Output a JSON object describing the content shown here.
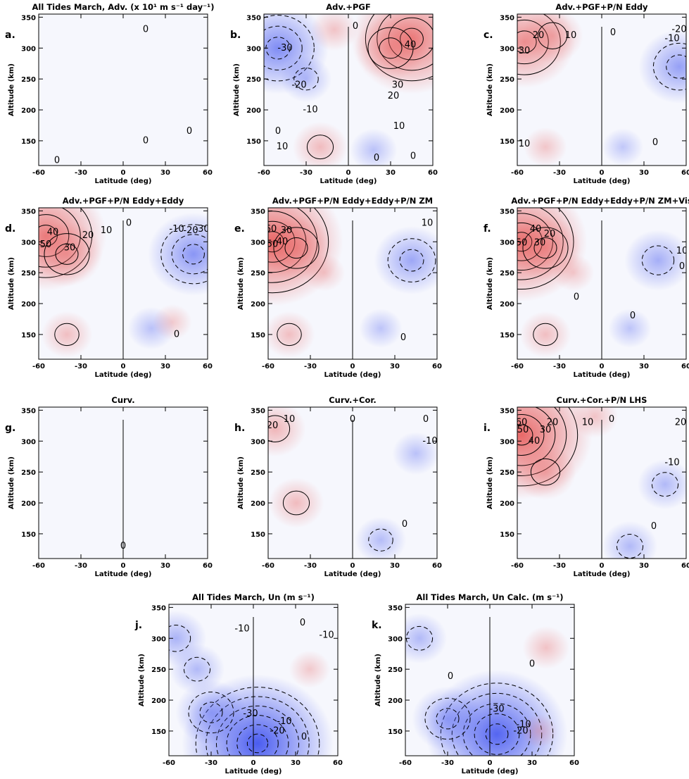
{
  "figure": {
    "colors": {
      "positive": "#e8605f",
      "negative": "#4a5cf0",
      "background": "#f6f7fd",
      "contour": "#000000"
    }
  },
  "chart_data": [
    {
      "id": "a",
      "type": "heatmap",
      "panel_label": "a.",
      "title": "All Tides March, Adv. (x 10¹ m s⁻¹ day⁻¹)",
      "xlabel": "Latitude (deg)",
      "ylabel": "Altitude (km)",
      "x_ticks": [
        "-60",
        "-30",
        "0",
        "30",
        "60"
      ],
      "y_ticks": [
        "150",
        "200",
        "250",
        "300",
        "350"
      ],
      "xlim": [
        -60,
        60
      ],
      "ylim": [
        110,
        355
      ],
      "contour_labels": [
        {
          "text": "0",
          "lat": 16,
          "alt": 150
        },
        {
          "text": "0",
          "lat": 47,
          "alt": 165
        },
        {
          "text": "0",
          "lat": -47,
          "alt": 118
        },
        {
          "text": "0",
          "lat": 16,
          "alt": 330
        }
      ],
      "features": []
    },
    {
      "id": "b",
      "type": "heatmap",
      "panel_label": "b.",
      "title": "Adv.+PGF",
      "xlabel": "Latitude (deg)",
      "ylabel": "Altitude (km)",
      "x_ticks": [
        "-60",
        "-30",
        "0",
        "30",
        "60"
      ],
      "y_ticks": [
        "150",
        "200",
        "250",
        "300",
        "350"
      ],
      "xlim": [
        -60,
        60
      ],
      "ylim": [
        110,
        355
      ],
      "contour_labels": [
        {
          "text": "-30",
          "lat": -45,
          "alt": 300
        },
        {
          "text": "-20",
          "lat": -35,
          "alt": 240
        },
        {
          "text": "-10",
          "lat": -27,
          "alt": 200
        },
        {
          "text": "0",
          "lat": -50,
          "alt": 165
        },
        {
          "text": "10",
          "lat": -47,
          "alt": 140
        },
        {
          "text": "0",
          "lat": 5,
          "alt": 335
        },
        {
          "text": "40",
          "lat": 44,
          "alt": 305
        },
        {
          "text": "30",
          "lat": 35,
          "alt": 240
        },
        {
          "text": "20",
          "lat": 32,
          "alt": 222
        },
        {
          "text": "10",
          "lat": 36,
          "alt": 173
        },
        {
          "text": "0",
          "lat": 20,
          "alt": 122
        },
        {
          "text": "0",
          "lat": 46,
          "alt": 125
        }
      ],
      "features": [
        {
          "lat": -50,
          "alt": 300,
          "value": -35
        },
        {
          "lat": -30,
          "alt": 250,
          "value": -10
        },
        {
          "lat": 45,
          "alt": 315,
          "value": 45
        },
        {
          "lat": 30,
          "alt": 300,
          "value": 20
        },
        {
          "lat": -20,
          "alt": 140,
          "value": 12
        },
        {
          "lat": -10,
          "alt": 330,
          "value": 8
        },
        {
          "lat": 18,
          "alt": 135,
          "value": -8
        }
      ]
    },
    {
      "id": "c",
      "type": "heatmap",
      "panel_label": "c.",
      "title": "Adv.+PGF+P/N Eddy",
      "xlabel": "Latitude (deg)",
      "ylabel": "Altitude (km)",
      "x_ticks": [
        "-60",
        "-30",
        "0",
        "30",
        "60"
      ],
      "y_ticks": [
        "150",
        "200",
        "250",
        "300",
        "350"
      ],
      "xlim": [
        -60,
        60
      ],
      "ylim": [
        110,
        355
      ],
      "contour_labels": [
        {
          "text": "30",
          "lat": -55,
          "alt": 295
        },
        {
          "text": "20",
          "lat": -45,
          "alt": 320
        },
        {
          "text": "10",
          "lat": -22,
          "alt": 320
        },
        {
          "text": "0",
          "lat": 8,
          "alt": 325
        },
        {
          "text": "-10",
          "lat": 50,
          "alt": 315
        },
        {
          "text": "-20",
          "lat": 55,
          "alt": 330
        },
        {
          "text": "0",
          "lat": 38,
          "alt": 147
        },
        {
          "text": "10",
          "lat": -55,
          "alt": 145
        }
      ],
      "features": [
        {
          "lat": -55,
          "alt": 310,
          "value": 35
        },
        {
          "lat": -35,
          "alt": 320,
          "value": 15
        },
        {
          "lat": 55,
          "alt": 270,
          "value": -25
        },
        {
          "lat": 15,
          "alt": 140,
          "value": -5
        },
        {
          "lat": -40,
          "alt": 140,
          "value": 6
        }
      ]
    },
    {
      "id": "d",
      "type": "heatmap",
      "panel_label": "d.",
      "title": "Adv.+PGF+P/N Eddy+Eddy",
      "xlabel": "Latitude (deg)",
      "ylabel": "Altitude (km)",
      "x_ticks": [
        "-60",
        "-30",
        "0",
        "30",
        "60"
      ],
      "y_ticks": [
        "150",
        "200",
        "250",
        "300",
        "350"
      ],
      "xlim": [
        -60,
        60
      ],
      "ylim": [
        110,
        355
      ],
      "contour_labels": [
        {
          "text": "50",
          "lat": -55,
          "alt": 295
        },
        {
          "text": "40",
          "lat": -50,
          "alt": 315
        },
        {
          "text": "30",
          "lat": -38,
          "alt": 290
        },
        {
          "text": "20",
          "lat": -25,
          "alt": 310
        },
        {
          "text": "10",
          "lat": -12,
          "alt": 318
        },
        {
          "text": "0",
          "lat": 4,
          "alt": 330
        },
        {
          "text": "-10",
          "lat": 38,
          "alt": 320
        },
        {
          "text": "-20",
          "lat": 48,
          "alt": 318
        },
        {
          "text": "-30",
          "lat": 56,
          "alt": 320
        },
        {
          "text": "0",
          "lat": 38,
          "alt": 150
        }
      ],
      "features": [
        {
          "lat": -55,
          "alt": 310,
          "value": 45
        },
        {
          "lat": -40,
          "alt": 280,
          "value": 20
        },
        {
          "lat": 50,
          "alt": 280,
          "value": -30
        },
        {
          "lat": 20,
          "alt": 160,
          "value": -8
        },
        {
          "lat": -40,
          "alt": 150,
          "value": 10
        },
        {
          "lat": 35,
          "alt": 170,
          "value": 4
        }
      ]
    },
    {
      "id": "e",
      "type": "heatmap",
      "panel_label": "e.",
      "title": "Adv.+PGF+P/N Eddy+Eddy+P/N ZM",
      "xlabel": "Latitude (deg)",
      "ylabel": "Altitude (km)",
      "x_ticks": [
        "-60",
        "-30",
        "0",
        "30",
        "60"
      ],
      "y_ticks": [
        "150",
        "200",
        "250",
        "300",
        "350"
      ],
      "xlim": [
        -60,
        60
      ],
      "ylim": [
        110,
        355
      ],
      "contour_labels": [
        {
          "text": "60",
          "lat": -58,
          "alt": 320
        },
        {
          "text": "50",
          "lat": -57,
          "alt": 296
        },
        {
          "text": "40",
          "lat": -50,
          "alt": 300
        },
        {
          "text": "30",
          "lat": -47,
          "alt": 318
        },
        {
          "text": "10",
          "lat": 53,
          "alt": 330
        },
        {
          "text": "0",
          "lat": 36,
          "alt": 145
        }
      ],
      "features": [
        {
          "lat": -57,
          "alt": 300,
          "value": 55
        },
        {
          "lat": -40,
          "alt": 290,
          "value": 20
        },
        {
          "lat": 42,
          "alt": 270,
          "value": -22
        },
        {
          "lat": 20,
          "alt": 160,
          "value": -6
        },
        {
          "lat": -45,
          "alt": 150,
          "value": 10
        },
        {
          "lat": -20,
          "alt": 250,
          "value": 5
        }
      ]
    },
    {
      "id": "f",
      "type": "heatmap",
      "panel_label": "f.",
      "title": "Adv.+PGF+P/N Eddy+Eddy+P/N ZM+Vis",
      "xlabel": "Latitude (deg)",
      "ylabel": "Altitude (km)",
      "x_ticks": [
        "-60",
        "-30",
        "0",
        "30",
        "60"
      ],
      "y_ticks": [
        "150",
        "200",
        "250",
        "300",
        "350"
      ],
      "xlim": [
        -60,
        60
      ],
      "ylim": [
        110,
        355
      ],
      "contour_labels": [
        {
          "text": "50",
          "lat": -57,
          "alt": 298
        },
        {
          "text": "40",
          "lat": -47,
          "alt": 320
        },
        {
          "text": "30",
          "lat": -44,
          "alt": 298
        },
        {
          "text": "20",
          "lat": -37,
          "alt": 312
        },
        {
          "text": "0",
          "lat": -18,
          "alt": 210
        },
        {
          "text": "0",
          "lat": 22,
          "alt": 180
        },
        {
          "text": "10",
          "lat": 57,
          "alt": 285
        },
        {
          "text": "0",
          "lat": 57,
          "alt": 260
        }
      ],
      "features": [
        {
          "lat": -57,
          "alt": 300,
          "value": 50
        },
        {
          "lat": -40,
          "alt": 290,
          "value": 20
        },
        {
          "lat": 40,
          "alt": 270,
          "value": -18
        },
        {
          "lat": 20,
          "alt": 160,
          "value": -6
        },
        {
          "lat": -40,
          "alt": 150,
          "value": 10
        },
        {
          "lat": -20,
          "alt": 250,
          "value": 5
        }
      ]
    },
    {
      "id": "g",
      "type": "heatmap",
      "panel_label": "g.",
      "title": "Curv.",
      "xlabel": "Latitude (deg)",
      "ylabel": "Altitude (km)",
      "x_ticks": [
        "-60",
        "-30",
        "0",
        "30",
        "60"
      ],
      "y_ticks": [
        "150",
        "200",
        "250",
        "300",
        "350"
      ],
      "xlim": [
        -60,
        60
      ],
      "ylim": [
        110,
        355
      ],
      "contour_labels": [
        {
          "text": "0",
          "lat": 0,
          "alt": 130
        }
      ],
      "features": []
    },
    {
      "id": "h",
      "type": "heatmap",
      "panel_label": "h.",
      "title": "Curv.+Cor.",
      "xlabel": "Latitude (deg)",
      "ylabel": "Altitude (km)",
      "x_ticks": [
        "-60",
        "-30",
        "0",
        "30",
        "60"
      ],
      "y_ticks": [
        "150",
        "200",
        "250",
        "300",
        "350"
      ],
      "xlim": [
        -60,
        60
      ],
      "ylim": [
        110,
        355
      ],
      "contour_labels": [
        {
          "text": "20",
          "lat": -57,
          "alt": 325
        },
        {
          "text": "10",
          "lat": -45,
          "alt": 335
        },
        {
          "text": "0",
          "lat": 0,
          "alt": 335
        },
        {
          "text": "0",
          "lat": 52,
          "alt": 335
        },
        {
          "text": "-10",
          "lat": 55,
          "alt": 300
        },
        {
          "text": "0",
          "lat": 37,
          "alt": 165
        }
      ],
      "features": [
        {
          "lat": -40,
          "alt": 200,
          "value": 12
        },
        {
          "lat": -55,
          "alt": 320,
          "value": 15
        },
        {
          "lat": 20,
          "alt": 140,
          "value": -10
        },
        {
          "lat": 45,
          "alt": 280,
          "value": -8
        }
      ]
    },
    {
      "id": "i",
      "type": "heatmap",
      "panel_label": "i.",
      "title": "Curv.+Cor.+P/N LHS",
      "xlabel": "Latitude (deg)",
      "ylabel": "Altitude (km)",
      "x_ticks": [
        "-60",
        "-30",
        "0",
        "30",
        "60"
      ],
      "y_ticks": [
        "150",
        "200",
        "250",
        "300",
        "350"
      ],
      "xlim": [
        -60,
        60
      ],
      "ylim": [
        110,
        355
      ],
      "contour_labels": [
        {
          "text": "60",
          "lat": -57,
          "alt": 330
        },
        {
          "text": "50",
          "lat": -56,
          "alt": 318
        },
        {
          "text": "40",
          "lat": -48,
          "alt": 300
        },
        {
          "text": "30",
          "lat": -40,
          "alt": 318
        },
        {
          "text": "20",
          "lat": -35,
          "alt": 330
        },
        {
          "text": "10",
          "lat": -10,
          "alt": 330
        },
        {
          "text": "0",
          "lat": 7,
          "alt": 335
        },
        {
          "text": "20",
          "lat": 56,
          "alt": 330
        },
        {
          "text": "-10",
          "lat": 50,
          "alt": 265
        },
        {
          "text": "0",
          "lat": 37,
          "alt": 162
        }
      ],
      "features": [
        {
          "lat": -57,
          "alt": 310,
          "value": 55
        },
        {
          "lat": -40,
          "alt": 250,
          "value": 15
        },
        {
          "lat": 20,
          "alt": 130,
          "value": -12
        },
        {
          "lat": 45,
          "alt": 230,
          "value": -12
        },
        {
          "lat": -5,
          "alt": 340,
          "value": 8
        }
      ]
    },
    {
      "id": "j",
      "type": "heatmap",
      "panel_label": "j.",
      "title": "All Tides March, Un (m s⁻¹)",
      "xlabel": "Latitude (deg)",
      "ylabel": "Altitude (km)",
      "x_ticks": [
        "-60",
        "-30",
        "0",
        "30",
        "60"
      ],
      "y_ticks": [
        "150",
        "200",
        "250",
        "300",
        "350"
      ],
      "xlim": [
        -60,
        60
      ],
      "ylim": [
        110,
        355
      ],
      "contour_labels": [
        {
          "text": "-10",
          "lat": -8,
          "alt": 315
        },
        {
          "text": "0",
          "lat": 35,
          "alt": 325
        },
        {
          "text": "-10",
          "lat": 52,
          "alt": 305
        },
        {
          "text": "-30",
          "lat": -2,
          "alt": 178
        },
        {
          "text": "-10",
          "lat": 22,
          "alt": 165
        },
        {
          "text": "-20",
          "lat": 17,
          "alt": 150
        },
        {
          "text": "0",
          "lat": 36,
          "alt": 140
        }
      ],
      "features": [
        {
          "lat": 3,
          "alt": 130,
          "value": -60
        },
        {
          "lat": -30,
          "alt": 180,
          "value": -20
        },
        {
          "lat": -55,
          "alt": 300,
          "value": -15
        },
        {
          "lat": -40,
          "alt": 250,
          "value": -12
        },
        {
          "lat": 40,
          "alt": 250,
          "value": 5
        }
      ]
    },
    {
      "id": "k",
      "type": "heatmap",
      "panel_label": "k.",
      "title": "All Tides March, Un Calc. (m s⁻¹)",
      "xlabel": "Latitude (deg)",
      "ylabel": "Altitude (km)",
      "x_ticks": [
        "-60",
        "-30",
        "0",
        "30",
        "60"
      ],
      "y_ticks": [
        "150",
        "200",
        "250",
        "300",
        "350"
      ],
      "xlim": [
        -60,
        60
      ],
      "ylim": [
        110,
        355
      ],
      "contour_labels": [
        {
          "text": "0",
          "lat": 30,
          "alt": 258
        },
        {
          "text": "-30",
          "lat": 5,
          "alt": 185
        },
        {
          "text": "-10",
          "lat": 24,
          "alt": 160
        },
        {
          "text": "-20",
          "lat": 22,
          "alt": 150
        },
        {
          "text": "0",
          "lat": -28,
          "alt": 238
        }
      ],
      "features": [
        {
          "lat": 5,
          "alt": 145,
          "value": -55
        },
        {
          "lat": -30,
          "alt": 170,
          "value": -20
        },
        {
          "lat": -50,
          "alt": 300,
          "value": -12
        },
        {
          "lat": 40,
          "alt": 285,
          "value": 8
        },
        {
          "lat": 35,
          "alt": 150,
          "value": 3
        }
      ]
    }
  ]
}
